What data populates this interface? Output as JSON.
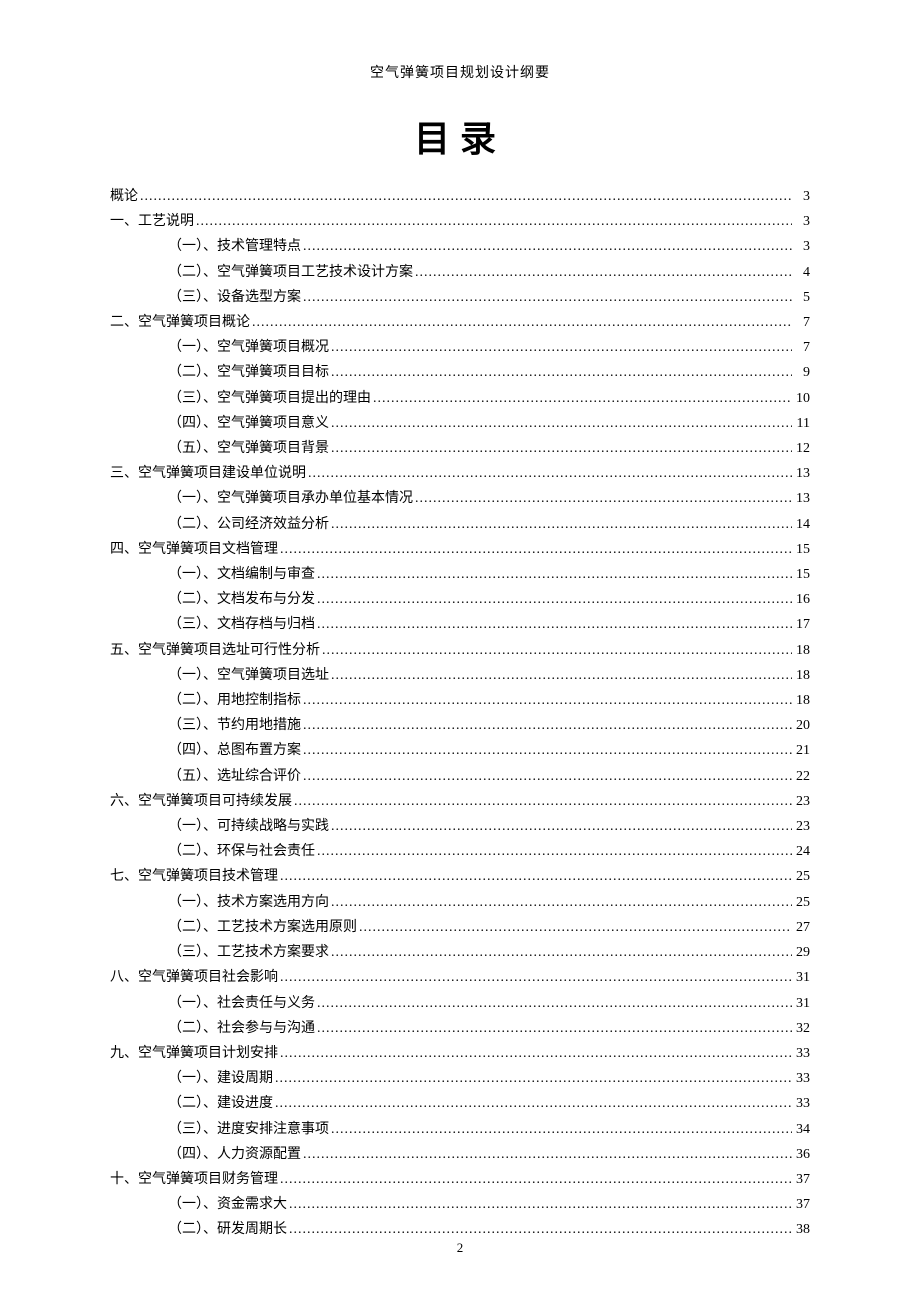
{
  "header": "空气弹簧项目规划设计纲要",
  "title": "目录",
  "page_number": "2",
  "toc": [
    {
      "level": 0,
      "label": "概论",
      "page": "3"
    },
    {
      "level": 0,
      "label": "一、工艺说明",
      "page": "3"
    },
    {
      "level": 1,
      "label": "（一）、技术管理特点",
      "page": "3"
    },
    {
      "level": 1,
      "label": "（二）、空气弹簧项目工艺技术设计方案",
      "page": "4"
    },
    {
      "level": 1,
      "label": "（三）、设备选型方案",
      "page": "5"
    },
    {
      "level": 0,
      "label": "二、空气弹簧项目概论",
      "page": "7"
    },
    {
      "level": 1,
      "label": "（一）、空气弹簧项目概况",
      "page": "7"
    },
    {
      "level": 1,
      "label": "（二）、空气弹簧项目目标",
      "page": "9"
    },
    {
      "level": 1,
      "label": "（三）、空气弹簧项目提出的理由",
      "page": "10"
    },
    {
      "level": 1,
      "label": "（四）、空气弹簧项目意义",
      "page": "11"
    },
    {
      "level": 1,
      "label": "（五）、空气弹簧项目背景",
      "page": "12"
    },
    {
      "level": 0,
      "label": "三、空气弹簧项目建设单位说明",
      "page": "13"
    },
    {
      "level": 1,
      "label": "（一）、空气弹簧项目承办单位基本情况",
      "page": "13"
    },
    {
      "level": 1,
      "label": "（二）、公司经济效益分析",
      "page": "14"
    },
    {
      "level": 0,
      "label": "四、空气弹簧项目文档管理",
      "page": "15"
    },
    {
      "level": 1,
      "label": "（一）、文档编制与审查",
      "page": "15"
    },
    {
      "level": 1,
      "label": "（二）、文档发布与分发",
      "page": "16"
    },
    {
      "level": 1,
      "label": "（三）、文档存档与归档",
      "page": "17"
    },
    {
      "level": 0,
      "label": "五、空气弹簧项目选址可行性分析",
      "page": "18"
    },
    {
      "level": 1,
      "label": "（一）、空气弹簧项目选址",
      "page": "18"
    },
    {
      "level": 1,
      "label": "（二）、用地控制指标",
      "page": "18"
    },
    {
      "level": 1,
      "label": "（三）、节约用地措施",
      "page": "20"
    },
    {
      "level": 1,
      "label": "（四）、总图布置方案",
      "page": "21"
    },
    {
      "level": 1,
      "label": "（五）、选址综合评价",
      "page": "22"
    },
    {
      "level": 0,
      "label": "六、空气弹簧项目可持续发展",
      "page": "23"
    },
    {
      "level": 1,
      "label": "（一）、可持续战略与实践",
      "page": "23"
    },
    {
      "level": 1,
      "label": "（二）、环保与社会责任",
      "page": "24"
    },
    {
      "level": 0,
      "label": "七、空气弹簧项目技术管理",
      "page": "25"
    },
    {
      "level": 1,
      "label": "（一）、技术方案选用方向",
      "page": "25"
    },
    {
      "level": 1,
      "label": "（二）、工艺技术方案选用原则",
      "page": "27"
    },
    {
      "level": 1,
      "label": "（三）、工艺技术方案要求",
      "page": "29"
    },
    {
      "level": 0,
      "label": "八、空气弹簧项目社会影响",
      "page": "31"
    },
    {
      "level": 1,
      "label": "（一）、社会责任与义务",
      "page": "31"
    },
    {
      "level": 1,
      "label": "（二）、社会参与与沟通",
      "page": "32"
    },
    {
      "level": 0,
      "label": "九、空气弹簧项目计划安排",
      "page": "33"
    },
    {
      "level": 1,
      "label": "（一）、建设周期",
      "page": "33"
    },
    {
      "level": 1,
      "label": "（二）、建设进度",
      "page": "33"
    },
    {
      "level": 1,
      "label": "（三）、进度安排注意事项",
      "page": "34"
    },
    {
      "level": 1,
      "label": "（四）、人力资源配置",
      "page": "36"
    },
    {
      "level": 0,
      "label": "十、空气弹簧项目财务管理",
      "page": "37"
    },
    {
      "level": 1,
      "label": "（一）、资金需求大",
      "page": "37"
    },
    {
      "level": 1,
      "label": "（二）、研发周期长",
      "page": "38"
    }
  ]
}
